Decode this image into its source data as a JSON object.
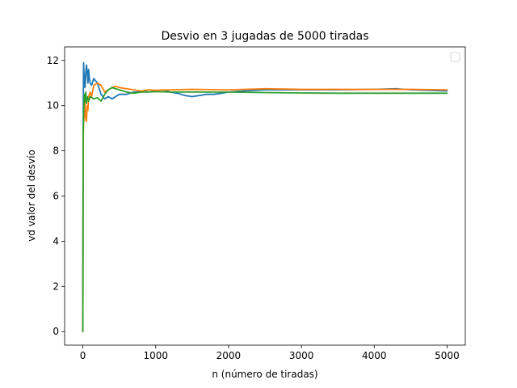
{
  "chart_data": {
    "type": "line",
    "title": "Desvio en 3 jugadas de 5000 tiradas",
    "xlabel": "n (número de tiradas)",
    "ylabel": "vd valor del desvío",
    "xlim": [
      -250,
      5250
    ],
    "ylim": [
      -0.6,
      12.6
    ],
    "x_ticks": [
      0,
      1000,
      2000,
      3000,
      4000,
      5000
    ],
    "x_tick_labels": [
      "0",
      "1000",
      "2000",
      "3000",
      "4000",
      "5000"
    ],
    "y_ticks": [
      0,
      2,
      4,
      6,
      8,
      10,
      12
    ],
    "y_tick_labels": [
      "0",
      "2",
      "4",
      "6",
      "8",
      "10",
      "12"
    ],
    "grid": false,
    "legend": {
      "placement": "top-right",
      "entries": []
    },
    "series": [
      {
        "color": "#1f77b4",
        "x": [
          0,
          5,
          10,
          20,
          30,
          40,
          50,
          60,
          70,
          80,
          90,
          100,
          120,
          150,
          200,
          250,
          300,
          350,
          400,
          450,
          500,
          600,
          700,
          800,
          900,
          1000,
          1100,
          1200,
          1300,
          1400,
          1500,
          1600,
          1700,
          1800,
          1900,
          2000,
          2200,
          2500,
          3000,
          3500,
          4000,
          4300,
          4500,
          5000
        ],
        "y": [
          0.0,
          9.0,
          11.9,
          11.2,
          10.8,
          11.4,
          11.8,
          11.5,
          11.0,
          11.6,
          11.2,
          11.0,
          10.9,
          11.2,
          11.0,
          10.5,
          10.3,
          10.4,
          10.3,
          10.4,
          10.5,
          10.5,
          10.6,
          10.6,
          10.7,
          10.65,
          10.7,
          10.6,
          10.55,
          10.45,
          10.4,
          10.45,
          10.5,
          10.5,
          10.55,
          10.6,
          10.65,
          10.7,
          10.7,
          10.7,
          10.72,
          10.75,
          10.7,
          10.65
        ]
      },
      {
        "color": "#ff7f0e",
        "x": [
          0,
          5,
          10,
          20,
          30,
          40,
          50,
          60,
          70,
          80,
          100,
          120,
          150,
          200,
          250,
          300,
          350,
          400,
          450,
          500,
          600,
          700,
          800,
          900,
          1000,
          1200,
          1500,
          2000,
          2500,
          3000,
          3500,
          4000,
          4500,
          5000
        ],
        "y": [
          0.0,
          8.5,
          9.2,
          9.6,
          10.2,
          9.4,
          9.3,
          10.0,
          9.8,
          10.4,
          10.6,
          10.4,
          10.9,
          11.0,
          10.9,
          10.6,
          10.7,
          10.8,
          10.85,
          10.8,
          10.75,
          10.7,
          10.65,
          10.7,
          10.68,
          10.7,
          10.72,
          10.7,
          10.75,
          10.72,
          10.72,
          10.72,
          10.72,
          10.7
        ]
      },
      {
        "color": "#2ca02c",
        "x": [
          0,
          5,
          10,
          20,
          30,
          40,
          50,
          60,
          70,
          80,
          100,
          150,
          200,
          250,
          300,
          350,
          400,
          450,
          500,
          600,
          700,
          800,
          900,
          1000,
          1200,
          1500,
          2000,
          2500,
          3000,
          3500,
          4000,
          4500,
          5000
        ],
        "y": [
          0.0,
          8.8,
          9.5,
          10.5,
          10.2,
          10.6,
          10.1,
          10.4,
          10.3,
          10.2,
          10.4,
          10.3,
          10.35,
          10.2,
          10.5,
          10.7,
          10.8,
          10.75,
          10.7,
          10.6,
          10.55,
          10.6,
          10.6,
          10.62,
          10.6,
          10.6,
          10.6,
          10.58,
          10.56,
          10.55,
          10.55,
          10.55,
          10.55
        ]
      }
    ]
  }
}
